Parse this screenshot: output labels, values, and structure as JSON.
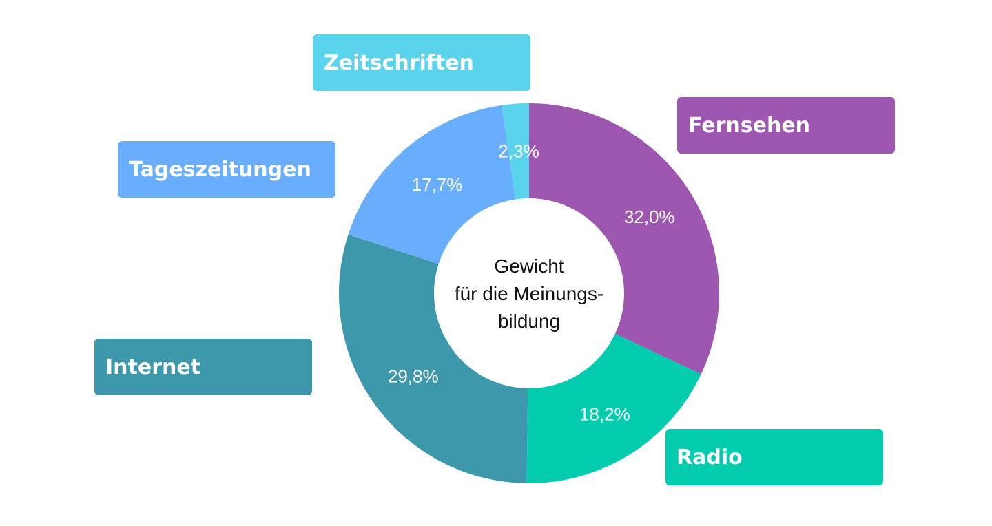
{
  "chart_data": {
    "type": "pie",
    "variant": "donut",
    "center_label": [
      "Gewicht",
      "für die Meinungs-",
      "bildung"
    ],
    "series": [
      {
        "name": "Fernsehen",
        "value": 32.0,
        "label": "32,0%",
        "color": "#9e57b0"
      },
      {
        "name": "Radio",
        "value": 18.2,
        "label": "18,2%",
        "color": "#03cbad"
      },
      {
        "name": "Internet",
        "value": 29.8,
        "label": "29,8%",
        "color": "#3d98ab"
      },
      {
        "name": "Tageszeitungen",
        "value": 17.7,
        "label": "17,7%",
        "color": "#68aefd"
      },
      {
        "name": "Zeitschriften",
        "value": 2.3,
        "label": "2,3%",
        "color": "#5bd3ec"
      }
    ],
    "legend": "callout labels around the ring"
  }
}
